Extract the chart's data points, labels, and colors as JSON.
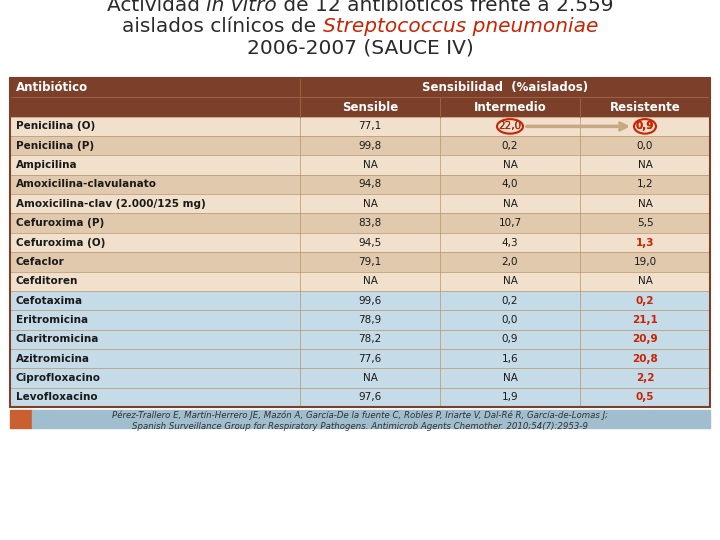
{
  "header_color": "#7B3F2A",
  "header_text_color": "#FFFFFF",
  "row_bg_light": "#F0E0CC",
  "row_bg_dark": "#E0C9AC",
  "row_bg_blue": "#C5DBE8",
  "accent_orange": "#C86030",
  "accent_blue": "#A0BECE",
  "title_color": "#2a2a2a",
  "red_color": "#CC2200",
  "columns": [
    "Antibiótico",
    "Sensible",
    "Intermedio",
    "Resistente"
  ],
  "rows": [
    [
      "Penicilina (O)",
      "77,1",
      "22,0",
      "0,9"
    ],
    [
      "Penicilina (P)",
      "99,8",
      "0,2",
      "0,0"
    ],
    [
      "Ampicilina",
      "NA",
      "NA",
      "NA"
    ],
    [
      "Amoxicilina-clavulanato",
      "94,8",
      "4,0",
      "1,2"
    ],
    [
      "Amoxicilina-clav (2.000/125 mg)",
      "NA",
      "NA",
      "NA"
    ],
    [
      "Cefuroxima (P)",
      "83,8",
      "10,7",
      "5,5"
    ],
    [
      "Cefuroxima (O)",
      "94,5",
      "4,3",
      "1,3"
    ],
    [
      "Cefaclor",
      "79,1",
      "2,0",
      "19,0"
    ],
    [
      "Cefditoren",
      "NA",
      "NA",
      "NA"
    ],
    [
      "Cefotaxima",
      "99,6",
      "0,2",
      "0,2"
    ],
    [
      "Eritromicina",
      "78,9",
      "0,0",
      "21,1"
    ],
    [
      "Claritromicina",
      "78,2",
      "0,9",
      "20,9"
    ],
    [
      "Azitromicina",
      "77,6",
      "1,6",
      "20,8"
    ],
    [
      "Ciprofloxacino",
      "NA",
      "NA",
      "2,2"
    ],
    [
      "Levofloxacino",
      "97,6",
      "1,9",
      "0,5"
    ]
  ],
  "bold_red_resistente": [
    0,
    6,
    9,
    10,
    11,
    12,
    13,
    14
  ],
  "blue_rows": [
    9,
    10,
    11,
    12,
    13,
    14
  ],
  "footnote1": "Pérez-Trallero E, Martín-Herrero JE, Mazón A, García-De la fuente C, Robles P, Iriarte V, Dal-Ré R, García-de-Lomas J;",
  "footnote2": "Spanish Surveillance Group for Respiratory Pathogens. Antimicrob Agents Chemother. 2010;54(7):2953-9"
}
